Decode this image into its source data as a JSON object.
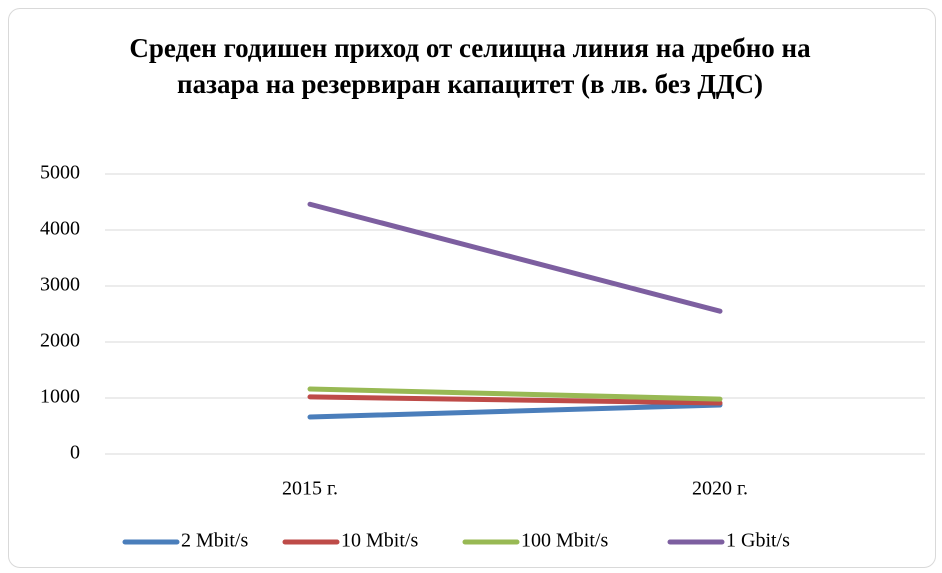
{
  "chart_data": {
    "type": "line",
    "title": "Среден годишен приход от селищна линия на дребно на пазара на резервиран капацитет (в лв. без ДДС)",
    "categories": [
      "2015 г.",
      "2020 г."
    ],
    "series": [
      {
        "name": "2 Mbit/s",
        "color": "#4a7ebb",
        "values": [
          660,
          875
        ]
      },
      {
        "name": "10 Mbit/s",
        "color": "#be4b48",
        "values": [
          1020,
          910
        ]
      },
      {
        "name": "100 Mbit/s",
        "color": "#98b954",
        "values": [
          1160,
          980
        ]
      },
      {
        "name": "1 Gbit/s",
        "color": "#7d5fa0",
        "values": [
          4460,
          2550
        ]
      }
    ],
    "ylim": [
      0,
      5000
    ],
    "yticks": [
      0,
      1000,
      2000,
      3000,
      4000,
      5000
    ],
    "grid": true,
    "legend": "bottom"
  }
}
